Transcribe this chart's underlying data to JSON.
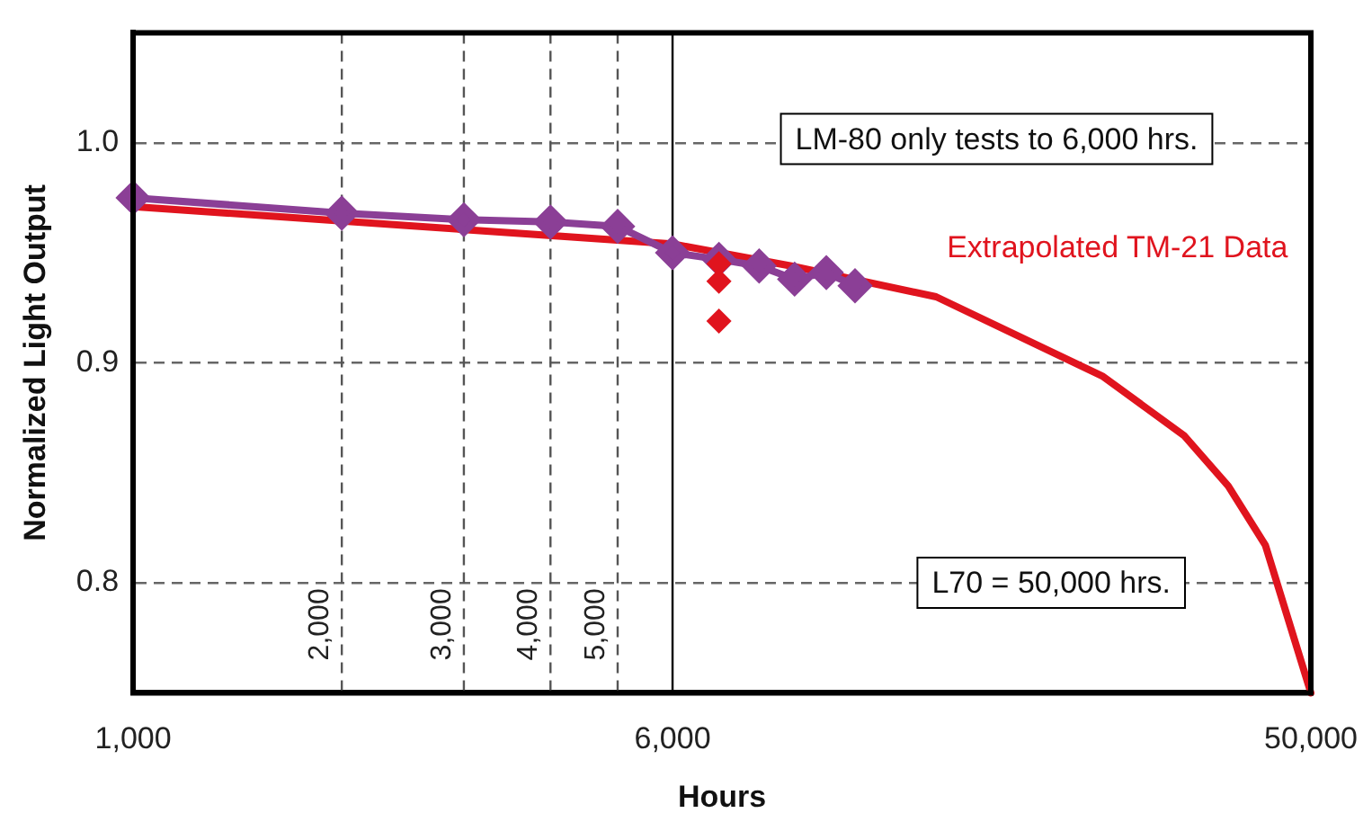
{
  "chart_data": {
    "type": "line",
    "xlabel": "Hours",
    "ylabel": "Normalized Light Output",
    "log": "x",
    "xlim": [
      1000,
      50000
    ],
    "xticks": [
      {
        "value": 1000,
        "label": "1,000"
      },
      {
        "value": 2000,
        "label": null
      },
      {
        "value": 3000,
        "label": null
      },
      {
        "value": 4000,
        "label": null
      },
      {
        "value": 5000,
        "label": null
      },
      {
        "value": 6000,
        "label": "6,000"
      },
      {
        "value": 50000,
        "label": "50,000"
      }
    ],
    "ylim": [
      0.75,
      1.05
    ],
    "yticks": [
      0.8,
      0.9,
      {
        "value": 1.0,
        "label": "1.0"
      }
    ],
    "grid": "y",
    "legend": false,
    "series": [
      {
        "name": "Extrapolated TM-21 Data",
        "color": "#e0141e",
        "marker": "none",
        "x": [
          1000,
          6000,
          8900,
          14400,
          25000,
          32800,
          38000,
          43000,
          50000
        ],
        "values": [
          0.971,
          0.954,
          0.944,
          0.93,
          0.894,
          0.867,
          0.844,
          0.817,
          0.75
        ]
      },
      {
        "type": "scatter",
        "color": "#e0141e",
        "marker": "diamond",
        "x": [
          7000,
          7000,
          7000
        ],
        "values": [
          0.945,
          0.937,
          0.919
        ]
      },
      {
        "color": "#8b3f96",
        "marker": "diamond",
        "x": [
          1000,
          2000,
          3000,
          4000,
          5000,
          6000,
          7000,
          8000,
          9000,
          10000,
          11000
        ],
        "values": [
          0.975,
          0.968,
          0.965,
          0.964,
          0.962,
          0.95,
          0.947,
          0.944,
          0.938,
          0.941,
          0.935
        ]
      }
    ],
    "ref_lines": [
      {
        "axis": "x",
        "value": 2000,
        "label": "2,000",
        "line_style": "dashed",
        "color": "#555555"
      },
      {
        "axis": "x",
        "value": 3000,
        "label": "3,000",
        "line_style": "dashed",
        "color": "#555555"
      },
      {
        "axis": "x",
        "value": 4000,
        "label": "4,000",
        "line_style": "dashed",
        "color": "#555555"
      },
      {
        "axis": "x",
        "value": 5000,
        "label": "5,000",
        "line_style": "dashed",
        "color": "#555555"
      },
      {
        "axis": "x",
        "value": 6000,
        "line_style": "solid",
        "color": "#000000"
      }
    ],
    "annotations": [
      "LM-80 only tests to 6,000 hrs.",
      "L70 = 50,000 hrs."
    ]
  }
}
